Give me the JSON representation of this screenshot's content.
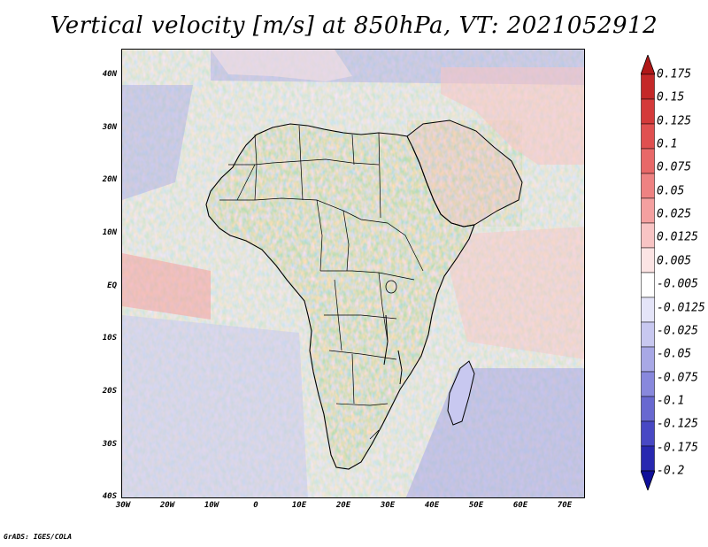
{
  "title": "Vertical velocity [m/s] at 850hPa, VT: 2021052912",
  "credit": "GrADS: IGES/COLA",
  "map": {
    "lat_labels": [
      "40N",
      "30N",
      "20N",
      "10N",
      "EQ",
      "10S",
      "20S",
      "30S",
      "40S"
    ],
    "lon_labels": [
      "30W",
      "20W",
      "10W",
      "0",
      "10E",
      "20E",
      "30E",
      "40E",
      "50E",
      "60E",
      "70E"
    ],
    "lon_range": [
      -30,
      75
    ],
    "lat_range": [
      -40,
      45
    ],
    "field": "vertical velocity at 850hPa",
    "units": "m/s"
  },
  "colorbar": {
    "labels": [
      "0.175",
      "0.15",
      "0.125",
      "0.1",
      "0.075",
      "0.05",
      "0.025",
      "0.0125",
      "0.005",
      "-0.005",
      "-0.0125",
      "-0.025",
      "-0.05",
      "-0.075",
      "-0.1",
      "-0.125",
      "-0.175",
      "-0.2"
    ],
    "colors": [
      "#b01818",
      "#c42828",
      "#d43a3a",
      "#e05050",
      "#e86868",
      "#ee8282",
      "#f4a0a0",
      "#f8c4c4",
      "#fce4e4",
      "#ffffff",
      "#e4e4f8",
      "#c8c8f0",
      "#a8a8e6",
      "#8888dc",
      "#6868d0",
      "#4848c4",
      "#2828b0",
      "#10109a"
    ]
  }
}
